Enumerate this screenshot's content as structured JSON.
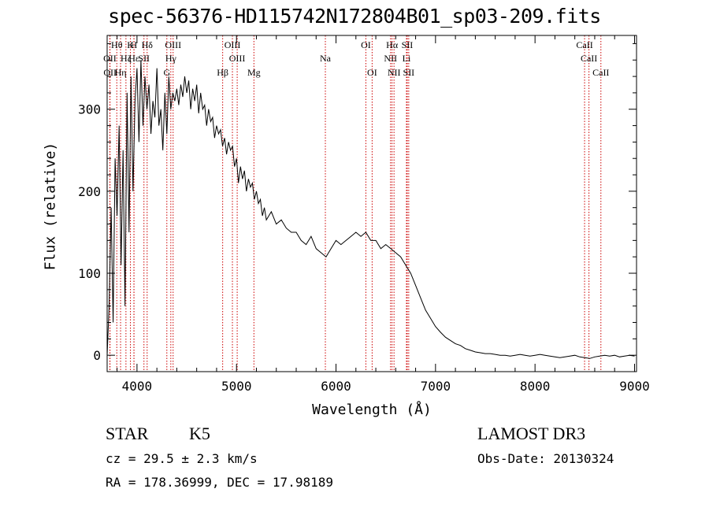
{
  "chart_data": {
    "type": "line",
    "title": "spec-56376-HD115742N172804B01_sp03-209.fits",
    "xlabel": "Wavelength (Å)",
    "ylabel": "Flux (relative)",
    "xlim": [
      3700,
      9020
    ],
    "ylim": [
      -20,
      390
    ],
    "xticks": [
      4000,
      5000,
      6000,
      7000,
      8000,
      9000
    ],
    "yticks": [
      0,
      100,
      200,
      300
    ],
    "grid": false,
    "series": [
      {
        "x": [
          3700,
          3720,
          3740,
          3760,
          3780,
          3800,
          3820,
          3840,
          3860,
          3880,
          3900,
          3920,
          3940,
          3960,
          3980,
          4000,
          4020,
          4040,
          4060,
          4080,
          4100,
          4120,
          4140,
          4160,
          4180,
          4200,
          4220,
          4240,
          4260,
          4280,
          4300,
          4320,
          4340,
          4360,
          4380,
          4400,
          4420,
          4440,
          4460,
          4480,
          4500,
          4520,
          4540,
          4560,
          4580,
          4600,
          4620,
          4640,
          4660,
          4680,
          4700,
          4720,
          4740,
          4760,
          4780,
          4800,
          4820,
          4840,
          4860,
          4880,
          4900,
          4920,
          4940,
          4960,
          4980,
          5000,
          5020,
          5040,
          5060,
          5080,
          5100,
          5120,
          5140,
          5160,
          5180,
          5200,
          5220,
          5240,
          5260,
          5280,
          5300,
          5350,
          5400,
          5450,
          5500,
          5550,
          5600,
          5650,
          5700,
          5750,
          5800,
          5850,
          5900,
          5950,
          6000,
          6050,
          6100,
          6150,
          6200,
          6250,
          6300,
          6350,
          6400,
          6450,
          6500,
          6550,
          6600,
          6650,
          6700,
          6750,
          6800,
          6850,
          6900,
          6950,
          7000,
          7050,
          7100,
          7150,
          7200,
          7250,
          7300,
          7350,
          7400,
          7450,
          7500,
          7550,
          7600,
          7650,
          7700,
          7750,
          7800,
          7850,
          7900,
          7950,
          8000,
          8050,
          8100,
          8150,
          8200,
          8250,
          8300,
          8350,
          8400,
          8450,
          8500,
          8550,
          8600,
          8650,
          8700,
          8750,
          8800,
          8850,
          8900,
          8950,
          9000
        ],
        "y": [
          0,
          60,
          180,
          40,
          240,
          170,
          280,
          110,
          250,
          60,
          320,
          150,
          340,
          200,
          310,
          350,
          260,
          360,
          280,
          340,
          300,
          330,
          270,
          310,
          290,
          350,
          280,
          300,
          250,
          320,
          270,
          340,
          300,
          320,
          310,
          325,
          305,
          330,
          315,
          340,
          320,
          335,
          300,
          325,
          310,
          330,
          295,
          320,
          300,
          305,
          280,
          300,
          285,
          290,
          265,
          280,
          270,
          275,
          255,
          265,
          245,
          260,
          250,
          255,
          230,
          240,
          210,
          230,
          215,
          225,
          200,
          215,
          205,
          210,
          190,
          200,
          185,
          190,
          170,
          180,
          165,
          175,
          160,
          165,
          155,
          150,
          150,
          140,
          135,
          145,
          130,
          125,
          120,
          130,
          140,
          135,
          140,
          145,
          150,
          145,
          150,
          140,
          140,
          130,
          135,
          130,
          125,
          120,
          110,
          100,
          85,
          70,
          55,
          45,
          35,
          28,
          22,
          18,
          14,
          12,
          8,
          6,
          4,
          3,
          2,
          2,
          1,
          0,
          0,
          -1,
          0,
          1,
          0,
          -1,
          0,
          1,
          0,
          -1,
          -2,
          -3,
          -2,
          -1,
          0,
          -2,
          -3,
          -4,
          -2,
          -1,
          0,
          -1,
          0,
          -2,
          -1,
          0,
          -1
        ]
      }
    ],
    "lines": [
      {
        "label": "Hθ",
        "x": 3797,
        "row": 1
      },
      {
        "label": "OII",
        "x": 3727,
        "row": 2
      },
      {
        "label": "OII",
        "x": 3729,
        "row": 3
      },
      {
        "label": "K",
        "x": 3934,
        "row": 1
      },
      {
        "label": "H",
        "x": 3969,
        "row": 1
      },
      {
        "label": "Hε",
        "x": 3970,
        "row": 2
      },
      {
        "label": "Hη",
        "x": 3835,
        "row": 3
      },
      {
        "label": "Hζ",
        "x": 3889,
        "row": 2
      },
      {
        "label": "SII",
        "x": 4070,
        "row": 2
      },
      {
        "label": "Hδ",
        "x": 4102,
        "row": 1
      },
      {
        "label": "G",
        "x": 4300,
        "row": 3
      },
      {
        "label": "OIII",
        "x": 4363,
        "row": 1
      },
      {
        "label": "Hγ",
        "x": 4340,
        "row": 2
      },
      {
        "label": "Hβ",
        "x": 4861,
        "row": 3
      },
      {
        "label": "OIII",
        "x": 4959,
        "row": 1
      },
      {
        "label": "OIII",
        "x": 5007,
        "row": 2
      },
      {
        "label": "Mg",
        "x": 5175,
        "row": 3
      },
      {
        "label": "Na",
        "x": 5893,
        "row": 2
      },
      {
        "label": "OI",
        "x": 6300,
        "row": 1
      },
      {
        "label": "OI",
        "x": 6363,
        "row": 3
      },
      {
        "label": "Hα",
        "x": 6563,
        "row": 1
      },
      {
        "label": "NII",
        "x": 6548,
        "row": 2
      },
      {
        "label": "NII",
        "x": 6583,
        "row": 3
      },
      {
        "label": "SII",
        "x": 6716,
        "row": 1
      },
      {
        "label": "Li",
        "x": 6708,
        "row": 2
      },
      {
        "label": "SII",
        "x": 6731,
        "row": 3
      },
      {
        "label": "CaII",
        "x": 8498,
        "row": 1
      },
      {
        "label": "CaII",
        "x": 8542,
        "row": 2
      },
      {
        "label": "CaII",
        "x": 8662,
        "row": 3
      }
    ]
  },
  "info": {
    "class": "STAR",
    "subclass": "K5",
    "survey": "LAMOST DR3",
    "redshift": "cz = 29.5 ± 2.3 km/s",
    "obs_date": "Obs-Date: 20130324",
    "coords": "RA = 178.36999, DEC =  17.98189"
  },
  "colors": {
    "spectrum": "#000000",
    "line_marker": "#cc0000",
    "axes": "#000000"
  }
}
